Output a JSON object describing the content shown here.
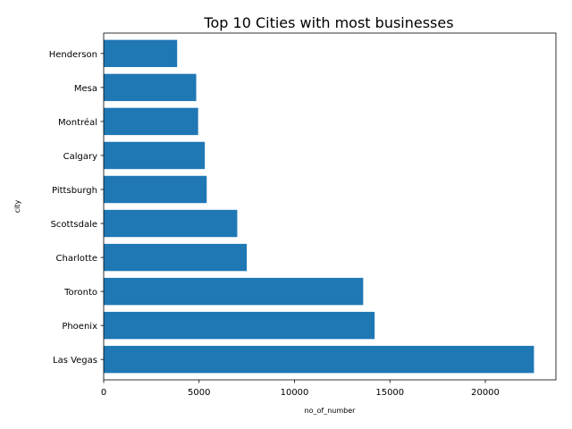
{
  "chart_data": {
    "type": "bar",
    "orientation": "horizontal",
    "title": "Top 10 Cities with most businesses",
    "xlabel": "no_of_number",
    "ylabel": "city",
    "categories": [
      "Las Vegas",
      "Phoenix",
      "Toronto",
      "Charlotte",
      "Scottsdale",
      "Pittsburgh",
      "Calgary",
      "Montréal",
      "Mesa",
      "Henderson"
    ],
    "values": [
      22550,
      14200,
      13600,
      7500,
      7000,
      5400,
      5300,
      4950,
      4850,
      3850
    ],
    "xlim": [
      0,
      23700
    ],
    "xticks": [
      0,
      5000,
      10000,
      15000,
      20000
    ],
    "grid": false,
    "colors": {
      "bar": "#1f77b4"
    }
  }
}
